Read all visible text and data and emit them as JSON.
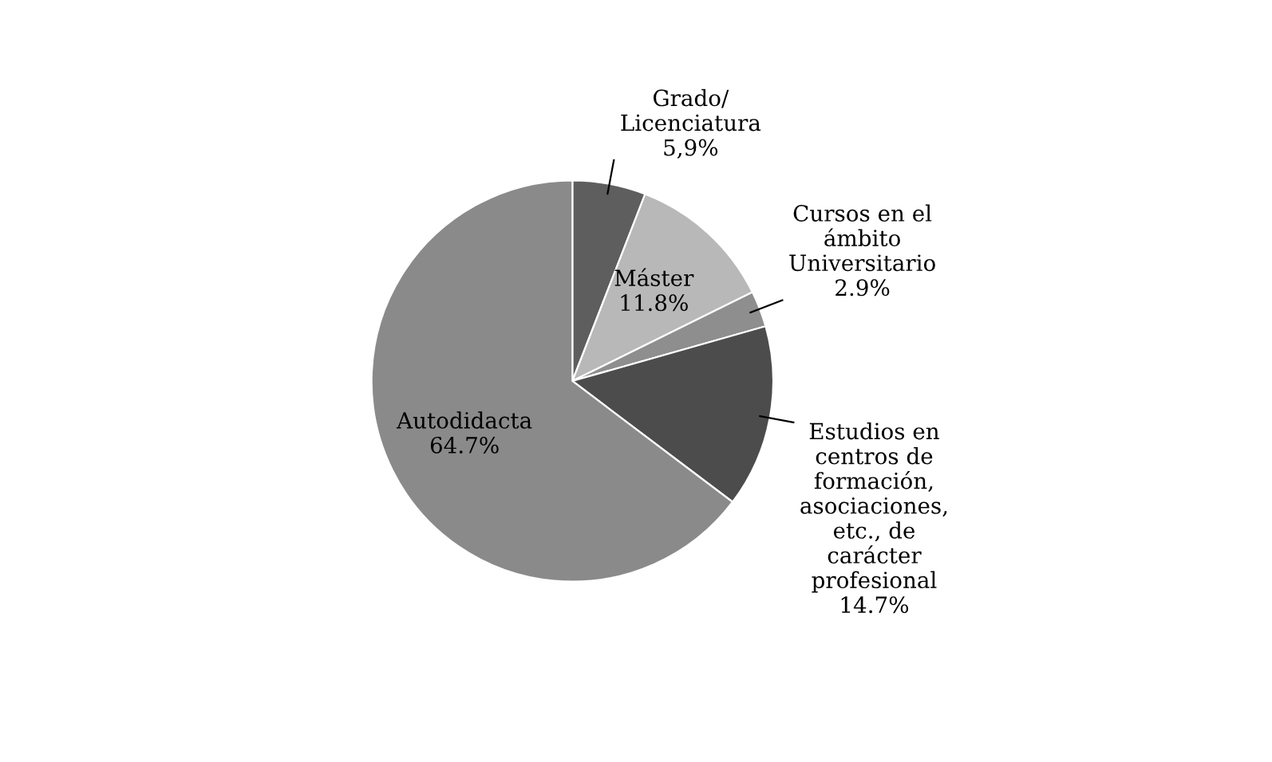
{
  "chart_data": {
    "type": "pie",
    "categories": [
      "Grado/\nLicenciatura",
      "Máster",
      "Cursos en el\námbito\nUniversitario",
      "Estudios en\ncentros de\nformación,\nasociaciones,\netc., de\ncarácter\nprofesional",
      "Autodidacta"
    ],
    "values": [
      5.9,
      11.8,
      2.9,
      14.7,
      64.7
    ],
    "value_labels": [
      "5,9%",
      "11.8%",
      "2.9%",
      "14.7%",
      "64.7%"
    ],
    "colors": [
      "#5e5e5e",
      "#b8b8b8",
      "#8e8e8e",
      "#4c4c4c",
      "#8a8a8a"
    ]
  }
}
